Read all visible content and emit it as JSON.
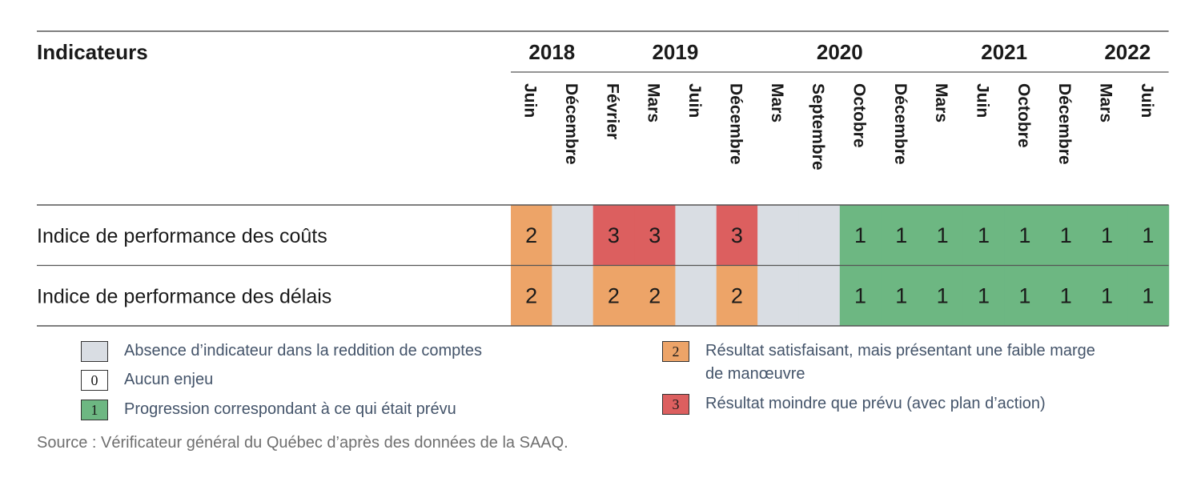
{
  "chart_data": {
    "type": "table",
    "header_label": "Indicateurs",
    "years": [
      {
        "label": "2018",
        "start": 0,
        "end": 1
      },
      {
        "label": "2019",
        "start": 2,
        "end": 5
      },
      {
        "label": "2020",
        "start": 6,
        "end": 9
      },
      {
        "label": "2021",
        "start": 10,
        "end": 13
      },
      {
        "label": "2022",
        "start": 14,
        "end": 15
      }
    ],
    "periods": [
      "Juin",
      "Décembre",
      "Février",
      "Mars",
      "Juin",
      "Décembre",
      "Mars",
      "Septembre",
      "Octobre",
      "Décembre",
      "Mars",
      "Juin",
      "Octobre",
      "Décembre",
      "Mars",
      "Juin"
    ],
    "rows": [
      {
        "name": "Indice de performance des coûts",
        "values": [
          "2",
          null,
          "3",
          "3",
          null,
          "3",
          null,
          null,
          "1",
          "1",
          "1",
          "1",
          "1",
          "1",
          "1",
          "1"
        ]
      },
      {
        "name": "Indice de performance des délais",
        "values": [
          "2",
          null,
          "2",
          "2",
          null,
          "2",
          null,
          null,
          "1",
          "1",
          "1",
          "1",
          "1",
          "1",
          "1",
          "1"
        ]
      }
    ],
    "status_colors": {
      "none": "#d9dde3",
      "0": "#ffffff",
      "1": "#6db782",
      "2": "#eda468",
      "3": "#dc5f5f"
    }
  },
  "legend": [
    {
      "code": "",
      "status": "none",
      "text": "Absence d’indicateur dans la reddition de comptes"
    },
    {
      "code": "0",
      "status": "0",
      "text": "Aucun enjeu"
    },
    {
      "code": "1",
      "status": "1",
      "text": "Progression correspondant à ce qui était prévu"
    },
    {
      "code": "2",
      "status": "2",
      "text": "Résultat satisfaisant, mais présentant une faible marge de manœuvre"
    },
    {
      "code": "3",
      "status": "3",
      "text": "Résultat moindre que prévu (avec plan d’action)"
    }
  ],
  "source": "Source : Vérificateur général du Québec d’après des données de la SAAQ."
}
